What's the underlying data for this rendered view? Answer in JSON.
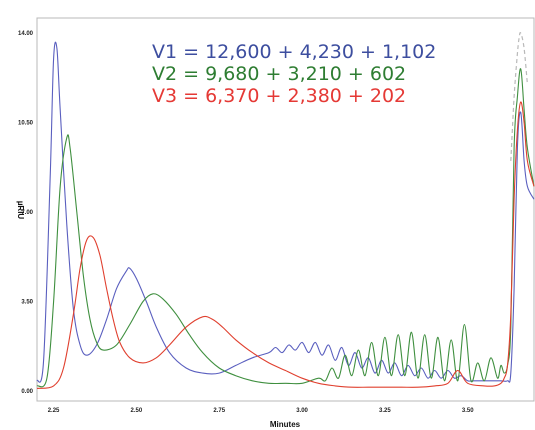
{
  "chart_data": {
    "type": "line",
    "title": "",
    "xlabel": "Minutes",
    "ylabel": "µRIU",
    "xlim": [
      2.2,
      3.7
    ],
    "ylim": [
      0,
      14
    ],
    "x_ticks": [
      {
        "value": 2.25,
        "label": "2.25"
      },
      {
        "value": 2.5,
        "label": "2.50"
      },
      {
        "value": 2.75,
        "label": "2.75"
      },
      {
        "value": 3.0,
        "label": "3.00"
      },
      {
        "value": 3.25,
        "label": "3.25"
      },
      {
        "value": 3.5,
        "label": "3.50"
      }
    ],
    "y_ticks": [
      {
        "value": 0,
        "label": "0.00"
      },
      {
        "value": 3.5,
        "label": "3.50"
      },
      {
        "value": 7.0,
        "label": "7.00"
      },
      {
        "value": 10.5,
        "label": "10.50"
      },
      {
        "value": 14.0,
        "label": "14.00"
      }
    ],
    "annotations": [
      {
        "text": "V1 = 12,600 + 4,230 + 1,102",
        "color": "#3d4e9f"
      },
      {
        "text": "V2 = 9,680 + 3,210 + 602",
        "color": "#2e7d32"
      },
      {
        "text": "V3 = 6,370 + 2,380 + 202",
        "color": "#e53935"
      }
    ],
    "series": [
      {
        "color": "#5a5fbf",
        "x": [
          2.2,
          2.22,
          2.24,
          2.25,
          2.26,
          2.27,
          2.29,
          2.31,
          2.33,
          2.35,
          2.38,
          2.41,
          2.44,
          2.47,
          2.48,
          2.5,
          2.53,
          2.56,
          2.6,
          2.65,
          2.7,
          2.75,
          2.8,
          2.85,
          2.9,
          2.92,
          2.94,
          2.96,
          2.98,
          3.0,
          3.02,
          3.04,
          3.06,
          3.08,
          3.1,
          3.12,
          3.14,
          3.16,
          3.18,
          3.2,
          3.22,
          3.24,
          3.26,
          3.28,
          3.3,
          3.32,
          3.34,
          3.36,
          3.38,
          3.4,
          3.42,
          3.44,
          3.46,
          3.48,
          3.5,
          3.52,
          3.54,
          3.56,
          3.58,
          3.6,
          3.62,
          3.63,
          3.64,
          3.65,
          3.66,
          3.67,
          3.68,
          3.7
        ],
        "y": [
          0.4,
          1.2,
          8.5,
          13.0,
          13.4,
          11.0,
          6.5,
          3.2,
          1.8,
          1.4,
          1.8,
          2.8,
          4.0,
          4.7,
          4.8,
          4.4,
          3.5,
          2.5,
          1.5,
          0.9,
          0.7,
          0.7,
          1.0,
          1.3,
          1.5,
          1.7,
          1.5,
          1.8,
          1.6,
          1.9,
          1.5,
          1.9,
          1.4,
          1.8,
          1.2,
          1.7,
          1.0,
          1.5,
          0.9,
          1.3,
          0.7,
          1.2,
          0.7,
          1.1,
          0.6,
          1.0,
          0.6,
          0.9,
          0.5,
          0.8,
          0.5,
          0.8,
          0.5,
          0.6,
          0.4,
          0.4,
          0.4,
          0.4,
          0.4,
          0.4,
          0.4,
          0.7,
          4.0,
          9.5,
          10.9,
          9.0,
          8.0,
          7.5
        ]
      },
      {
        "color": "#3f8f3f",
        "x": [
          2.2,
          2.23,
          2.25,
          2.27,
          2.29,
          2.3,
          2.32,
          2.34,
          2.36,
          2.38,
          2.4,
          2.44,
          2.48,
          2.52,
          2.55,
          2.58,
          2.62,
          2.66,
          2.7,
          2.75,
          2.8,
          2.85,
          2.9,
          2.95,
          3.0,
          3.05,
          3.07,
          3.09,
          3.11,
          3.13,
          3.15,
          3.17,
          3.19,
          3.21,
          3.23,
          3.25,
          3.27,
          3.29,
          3.31,
          3.33,
          3.35,
          3.37,
          3.39,
          3.41,
          3.43,
          3.45,
          3.47,
          3.49,
          3.51,
          3.53,
          3.55,
          3.57,
          3.59,
          3.6,
          3.61,
          3.62,
          3.63,
          3.64,
          3.65,
          3.66,
          3.67,
          3.68,
          3.7
        ],
        "y": [
          0.2,
          0.5,
          3.5,
          8.0,
          9.9,
          9.5,
          7.0,
          4.5,
          2.8,
          1.9,
          1.6,
          1.8,
          2.6,
          3.5,
          3.8,
          3.6,
          3.0,
          2.2,
          1.5,
          0.9,
          0.6,
          0.4,
          0.3,
          0.3,
          0.3,
          0.5,
          0.4,
          0.9,
          0.5,
          1.4,
          0.6,
          1.6,
          0.6,
          1.9,
          0.6,
          2.1,
          0.6,
          2.2,
          0.6,
          2.3,
          0.5,
          2.2,
          0.5,
          2.1,
          0.4,
          2.0,
          0.4,
          2.6,
          0.4,
          1.1,
          0.4,
          1.3,
          0.5,
          1.0,
          0.7,
          1.0,
          2.5,
          9.5,
          11.5,
          12.6,
          11.0,
          9.5,
          8.0
        ]
      },
      {
        "color": "#e0402f",
        "x": [
          2.2,
          2.25,
          2.28,
          2.31,
          2.33,
          2.35,
          2.37,
          2.39,
          2.41,
          2.43,
          2.45,
          2.48,
          2.52,
          2.56,
          2.6,
          2.65,
          2.7,
          2.73,
          2.76,
          2.8,
          2.85,
          2.9,
          2.95,
          3.0,
          3.05,
          3.1,
          3.15,
          3.2,
          3.25,
          3.3,
          3.35,
          3.4,
          3.44,
          3.47,
          3.5,
          3.55,
          3.58,
          3.6,
          3.61,
          3.62,
          3.63,
          3.64,
          3.65,
          3.66,
          3.67,
          3.68,
          3.7
        ],
        "y": [
          0.1,
          0.2,
          0.9,
          3.0,
          4.8,
          5.9,
          6.0,
          5.3,
          4.0,
          2.8,
          1.9,
          1.3,
          1.1,
          1.3,
          1.8,
          2.5,
          2.9,
          2.8,
          2.5,
          2.0,
          1.5,
          1.1,
          0.8,
          0.5,
          0.3,
          0.2,
          0.15,
          0.15,
          0.15,
          0.15,
          0.15,
          0.2,
          0.3,
          0.8,
          0.3,
          0.2,
          0.2,
          0.3,
          0.5,
          1.0,
          3.0,
          7.5,
          10.2,
          11.3,
          10.5,
          9.0,
          8.0
        ]
      }
    ],
    "dashed_tail": {
      "color": "#b9b9b9",
      "x": [
        3.63,
        3.64,
        3.65,
        3.655,
        3.66,
        3.67,
        3.68
      ],
      "y": [
        9.0,
        11.5,
        13.2,
        13.8,
        14.0,
        13.4,
        12.0
      ]
    }
  }
}
